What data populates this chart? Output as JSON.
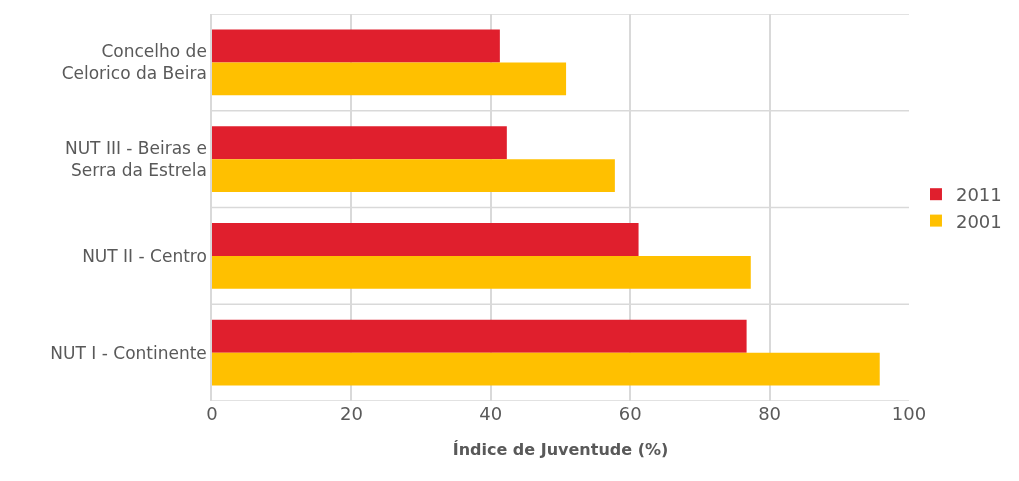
{
  "chart_data": {
    "type": "bar",
    "orientation": "horizontal",
    "xlabel": "Índice de Juventude (%)",
    "categories": [
      "Concelho de\nCelorico da Beira",
      "NUT III - Beiras e\nSerra da Estrela",
      "NUT II - Centro",
      "NUT I - Continente"
    ],
    "series": [
      {
        "name": "2011",
        "color": "#e01f2d",
        "values": [
          41.3,
          42.3,
          61.2,
          76.7
        ]
      },
      {
        "name": "2001",
        "color": "#ffc000",
        "values": [
          50.8,
          57.8,
          77.3,
          95.8
        ]
      }
    ],
    "xlim": [
      0,
      100
    ],
    "xticks": [
      0,
      20,
      40,
      60,
      80,
      100
    ],
    "grid": true,
    "legend": "right"
  }
}
